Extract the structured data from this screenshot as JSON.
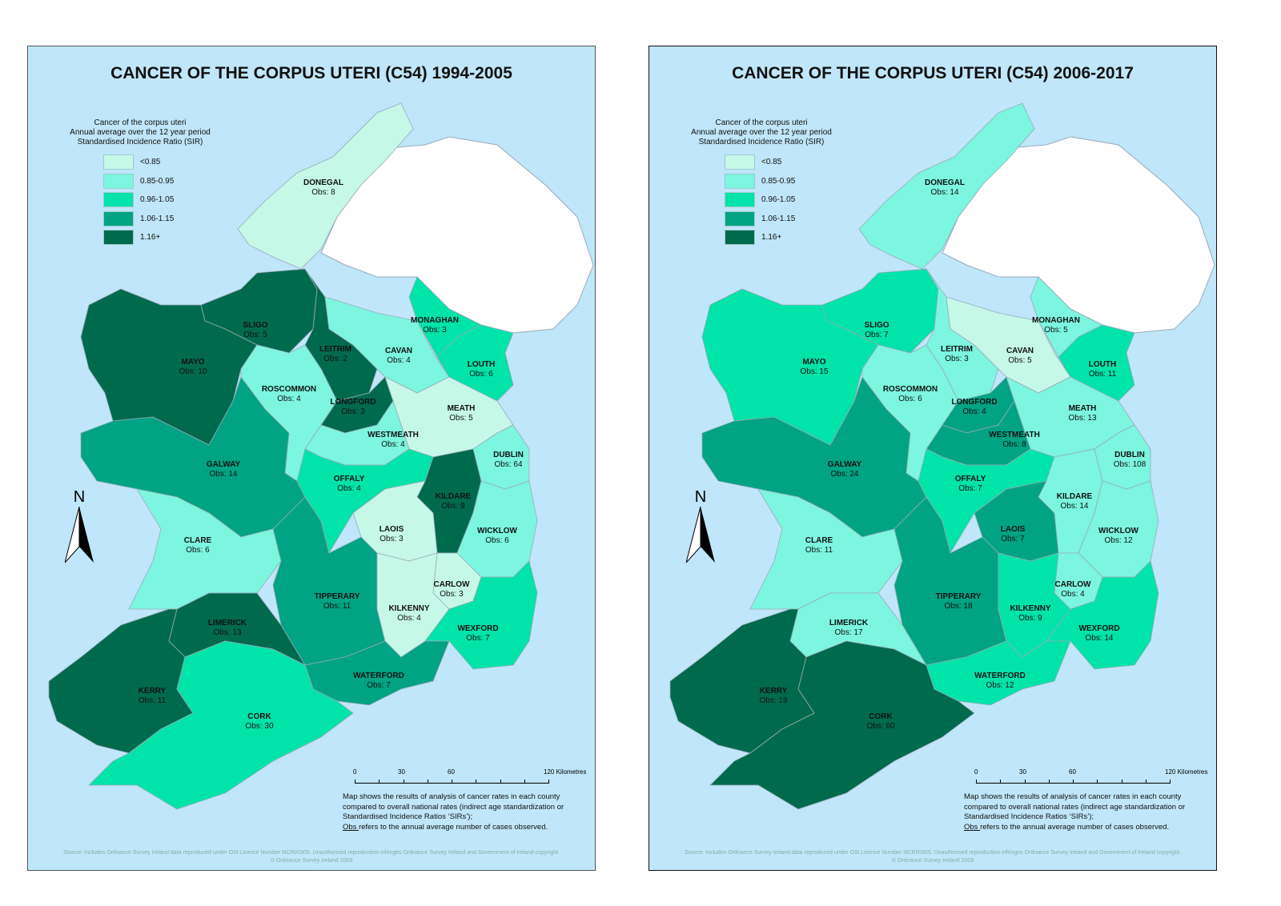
{
  "legend": {
    "heading": [
      "Cancer of the corpus uteri",
      "Annual average over the 12 year period",
      "Standardised Incidence Ratio (SIR)"
    ],
    "classes": [
      {
        "label": "<0.85",
        "color": "#c6f8e8"
      },
      {
        "label": "0.85-0.95",
        "color": "#7cf6de"
      },
      {
        "label": "0.96-1.05",
        "color": "#00e3a9"
      },
      {
        "label": "1.06-1.15",
        "color": "#00a383"
      },
      {
        "label": "1.16+",
        "color": "#006a4d"
      }
    ]
  },
  "colors": {
    "sea": "#bfe6fa",
    "northern_ireland": "#ffffff",
    "border": "#9ab"
  },
  "north_label": "N",
  "scale": {
    "ticks": [
      "0",
      "30",
      "60",
      "120 Kilometres"
    ]
  },
  "note": {
    "line1": "Map shows the results of analysis of cancer rates in each county compared to overall national rates (indirect age standardization or Standardised Incidence Ratios ‘SIRs’);",
    "obs_word": "Obs ",
    "line2": "refers to the annual average number of cases observed."
  },
  "footer": {
    "line1": "Source: Includes Ordnance Survey Ireland data reproduced under OSi Licence Number NCRI/0305. Unauthorised reproduction infringes Ordnance Survey Ireland and Government of Ireland copyright.",
    "line2": "© Ordnance Survey Ireland 2009"
  },
  "panels": [
    {
      "title": "CANCER OF THE CORPUS UTERI (C54) 1994-2005",
      "counties": [
        {
          "name": "DONEGAL",
          "obs": "Obs: 8",
          "sir_class": 0
        },
        {
          "name": "SLIGO",
          "obs": "Obs: 5",
          "sir_class": 4
        },
        {
          "name": "MAYO",
          "obs": "Obs: 10",
          "sir_class": 4
        },
        {
          "name": "LEITRIM",
          "obs": "Obs: 2",
          "sir_class": 4
        },
        {
          "name": "CAVAN",
          "obs": "Obs: 4",
          "sir_class": 1
        },
        {
          "name": "MONAGHAN",
          "obs": "Obs: 3",
          "sir_class": 2
        },
        {
          "name": "LOUTH",
          "obs": "Obs: 6",
          "sir_class": 2
        },
        {
          "name": "ROSCOMMON",
          "obs": "Obs: 4",
          "sir_class": 1
        },
        {
          "name": "LONGFORD",
          "obs": "Obs: 3",
          "sir_class": 4
        },
        {
          "name": "MEATH",
          "obs": "Obs: 5",
          "sir_class": 0
        },
        {
          "name": "WESTMEATH",
          "obs": "Obs: 4",
          "sir_class": 1
        },
        {
          "name": "DUBLIN",
          "obs": "Obs: 64",
          "sir_class": 1
        },
        {
          "name": "GALWAY",
          "obs": "Obs: 14",
          "sir_class": 3
        },
        {
          "name": "OFFALY",
          "obs": "Obs: 4",
          "sir_class": 2
        },
        {
          "name": "KILDARE",
          "obs": "Obs: 9",
          "sir_class": 4
        },
        {
          "name": "LAOIS",
          "obs": "Obs: 3",
          "sir_class": 0
        },
        {
          "name": "WICKLOW",
          "obs": "Obs: 6",
          "sir_class": 1
        },
        {
          "name": "CLARE",
          "obs": "Obs: 6",
          "sir_class": 1
        },
        {
          "name": "CARLOW",
          "obs": "Obs: 3",
          "sir_class": 0
        },
        {
          "name": "TIPPERARY",
          "obs": "Obs: 11",
          "sir_class": 3
        },
        {
          "name": "KILKENNY",
          "obs": "Obs: 4",
          "sir_class": 0
        },
        {
          "name": "WEXFORD",
          "obs": "Obs: 7",
          "sir_class": 2
        },
        {
          "name": "LIMERICK",
          "obs": "Obs: 13",
          "sir_class": 4
        },
        {
          "name": "WATERFORD",
          "obs": "Obs: 7",
          "sir_class": 3
        },
        {
          "name": "KERRY",
          "obs": "Obs: 11",
          "sir_class": 4
        },
        {
          "name": "CORK",
          "obs": "Obs: 30",
          "sir_class": 2
        }
      ]
    },
    {
      "title": "CANCER OF THE CORPUS UTERI (C54) 2006-2017",
      "counties": [
        {
          "name": "DONEGAL",
          "obs": "Obs: 14",
          "sir_class": 1
        },
        {
          "name": "SLIGO",
          "obs": "Obs: 7",
          "sir_class": 2
        },
        {
          "name": "MAYO",
          "obs": "Obs: 15",
          "sir_class": 2
        },
        {
          "name": "LEITRIM",
          "obs": "Obs: 3",
          "sir_class": 1
        },
        {
          "name": "CAVAN",
          "obs": "Obs: 5",
          "sir_class": 0
        },
        {
          "name": "MONAGHAN",
          "obs": "Obs: 5",
          "sir_class": 1
        },
        {
          "name": "LOUTH",
          "obs": "Obs: 11",
          "sir_class": 2
        },
        {
          "name": "ROSCOMMON",
          "obs": "Obs: 6",
          "sir_class": 1
        },
        {
          "name": "LONGFORD",
          "obs": "Obs: 4",
          "sir_class": 3
        },
        {
          "name": "MEATH",
          "obs": "Obs: 13",
          "sir_class": 1
        },
        {
          "name": "WESTMEATH",
          "obs": "Obs: 8",
          "sir_class": 3
        },
        {
          "name": "DUBLIN",
          "obs": "Obs: 108",
          "sir_class": 1
        },
        {
          "name": "GALWAY",
          "obs": "Obs: 24",
          "sir_class": 3
        },
        {
          "name": "OFFALY",
          "obs": "Obs: 7",
          "sir_class": 2
        },
        {
          "name": "KILDARE",
          "obs": "Obs: 14",
          "sir_class": 1
        },
        {
          "name": "LAOIS",
          "obs": "Obs: 7",
          "sir_class": 3
        },
        {
          "name": "WICKLOW",
          "obs": "Obs: 12",
          "sir_class": 1
        },
        {
          "name": "CLARE",
          "obs": "Obs: 11",
          "sir_class": 1
        },
        {
          "name": "CARLOW",
          "obs": "Obs: 4",
          "sir_class": 1
        },
        {
          "name": "TIPPERARY",
          "obs": "Obs: 18",
          "sir_class": 3
        },
        {
          "name": "KILKENNY",
          "obs": "Obs: 9",
          "sir_class": 2
        },
        {
          "name": "WEXFORD",
          "obs": "Obs: 14",
          "sir_class": 2
        },
        {
          "name": "LIMERICK",
          "obs": "Obs: 17",
          "sir_class": 1
        },
        {
          "name": "WATERFORD",
          "obs": "Obs: 12",
          "sir_class": 2
        },
        {
          "name": "KERRY",
          "obs": "Obs: 19",
          "sir_class": 4
        },
        {
          "name": "CORK",
          "obs": "Obs: 60",
          "sir_class": 4
        }
      ]
    }
  ]
}
